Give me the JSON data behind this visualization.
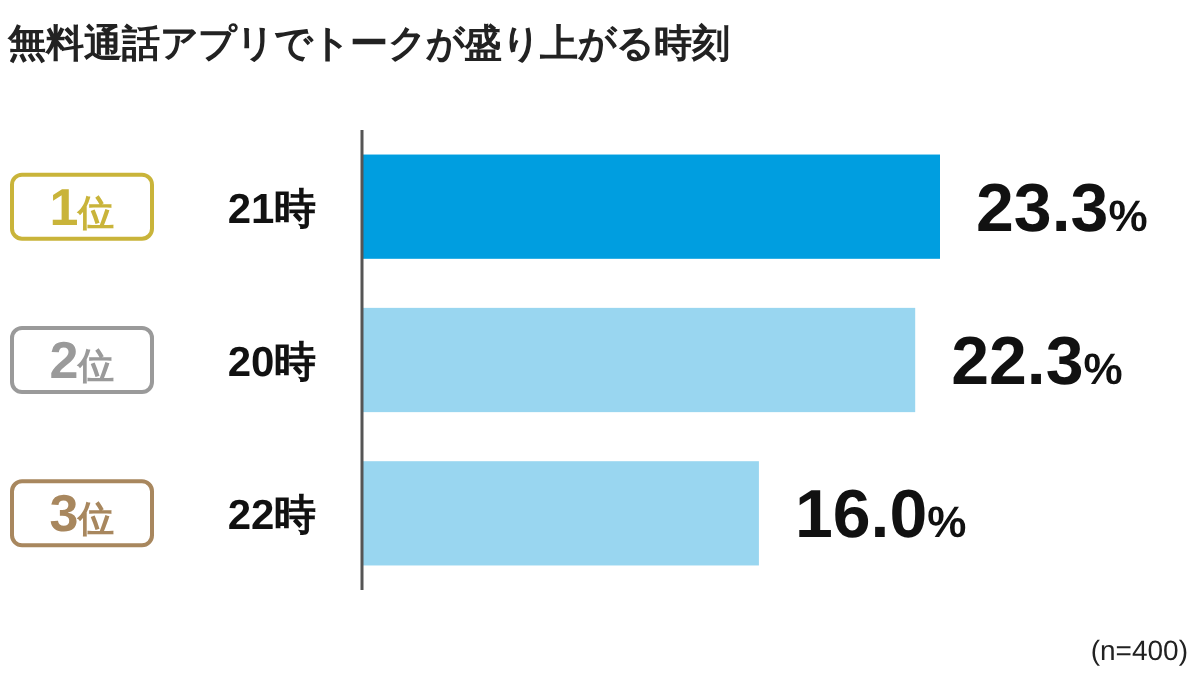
{
  "chart_data": {
    "type": "bar",
    "orientation": "horizontal",
    "title": "無料通話アプリでトークが盛り上がる時刻",
    "categories": [
      "21時",
      "20時",
      "22時"
    ],
    "values": [
      23.3,
      22.3,
      16.0
    ],
    "colors": [
      "#009ee0",
      "#99d6f0",
      "#99d6f0"
    ],
    "value_labels": [
      "23.3%",
      "22.3%",
      "16.0%"
    ],
    "annotations": [
      "1位",
      "2位",
      "3位",
      "(n=400)"
    ]
  }
}
